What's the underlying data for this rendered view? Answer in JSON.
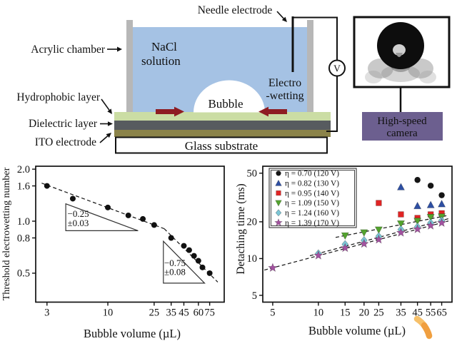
{
  "diagram": {
    "labels": {
      "acrylic_chamber": "Acrylic chamber",
      "needle_electrode": "Needle electrode",
      "nacl_1": "NaCl",
      "nacl_2": "solution",
      "bubble": "Bubble",
      "electro_1": "Electro",
      "electro_2": "-wetting",
      "hydrophobic_layer": "Hydrophobic layer",
      "dielectric_layer": "Dielectric layer",
      "ito_electrode": "ITO electrode",
      "glass_substrate": "Glass substrate",
      "voltmeter": "V",
      "camera_1": "High-speed",
      "camera_2": "camera"
    },
    "colors": {
      "solution": "#a5c2e4",
      "chamber_wall": "#b7b7b7",
      "hydrophobic": "#cbdda4",
      "dielectric": "#575b5f",
      "ito": "#8b8349",
      "electrowetting_text": "#93203e",
      "force_arrow": "#8e1c22",
      "camera_box": "#6c5f8f",
      "swoosh_light": "#f6c06a",
      "swoosh_dark": "#ef9d3e"
    }
  },
  "chart_data": [
    {
      "id": "threshold",
      "type": "scatter",
      "title": "",
      "xlabel": "Bubble volume (µL)",
      "ylabel": "Threshold electrowetting number",
      "xscale": "log",
      "yscale": "log",
      "xlim": [
        2.4,
        100
      ],
      "ylim": [
        0.34,
        2.08
      ],
      "grid": false,
      "xticks": [
        {
          "v": 3,
          "label": "3"
        },
        {
          "v": 10,
          "label": "10"
        },
        {
          "v": 25,
          "label": "25"
        },
        {
          "v": 35,
          "label": "35"
        },
        {
          "v": 45,
          "label": "45"
        },
        {
          "v": 60,
          "label": "60"
        },
        {
          "v": 75,
          "label": "75"
        }
      ],
      "yticks": [
        {
          "v": 2.0,
          "label": "2.0"
        },
        {
          "v": 1.6,
          "label": "1.6"
        },
        {
          "v": 1.0,
          "label": "1.0"
        },
        {
          "v": 0.8,
          "label": "0.8"
        },
        {
          "v": 0.5,
          "label": "0.5"
        }
      ],
      "series": [
        {
          "name": "threshold-electrowetting-number",
          "marker": "circle",
          "color": "#111111",
          "points": [
            [
              3,
              1.6
            ],
            [
              5,
              1.35
            ],
            [
              10,
              1.2
            ],
            [
              15,
              1.08
            ],
            [
              20,
              1.03
            ],
            [
              25,
              0.95
            ],
            [
              35,
              0.8
            ],
            [
              45,
              0.72
            ],
            [
              50,
              0.68
            ],
            [
              55,
              0.63
            ],
            [
              60,
              0.59
            ],
            [
              65,
              0.54
            ],
            [
              75,
              0.5
            ]
          ]
        }
      ],
      "fit_lines": [
        [
          [
            2.7,
            1.66
          ],
          [
            30.5,
            0.905
          ]
        ],
        [
          [
            30.5,
            0.905
          ],
          [
            88,
            0.444
          ]
        ]
      ],
      "slope_triangles": [
        {
          "vertices": [
            [
              4.35,
              1.26
            ],
            [
              18.2,
              0.881
            ],
            [
              4.35,
              0.881
            ]
          ],
          "labels": [
            {
              "text": "−0.25",
              "x": 4.5,
              "y": 1.06
            },
            {
              "text": "±0.03",
              "x": 4.5,
              "y": 0.935
            }
          ]
        },
        {
          "vertices": [
            [
              30,
              0.765
            ],
            [
              67.8,
              0.438
            ],
            [
              30,
              0.438
            ]
          ],
          "labels": [
            {
              "text": "−0.75",
              "x": 30.5,
              "y": 0.55
            },
            {
              "text": "±0.08",
              "x": 30.5,
              "y": 0.487
            }
          ]
        }
      ]
    },
    {
      "id": "detach",
      "type": "scatter",
      "title": "",
      "xlabel": "Bubble volume (µL)",
      "ylabel": "Detaching time (ms)",
      "xscale": "log",
      "yscale": "log",
      "xlim": [
        4.3,
        76
      ],
      "ylim": [
        4.4,
        57
      ],
      "grid": false,
      "legend_position": "upper-left",
      "xticks": [
        {
          "v": 5,
          "label": "5"
        },
        {
          "v": 10,
          "label": "10"
        },
        {
          "v": 15,
          "label": "15"
        },
        {
          "v": 20,
          "label": "20"
        },
        {
          "v": 25,
          "label": "25"
        },
        {
          "v": 35,
          "label": "35"
        },
        {
          "v": 45,
          "label": "45"
        },
        {
          "v": 55,
          "label": "55"
        },
        {
          "v": 65,
          "label": "65"
        }
      ],
      "yticks": [
        {
          "v": 50,
          "label": "50"
        },
        {
          "v": 20,
          "label": "20"
        },
        {
          "v": 10,
          "label": "10"
        },
        {
          "v": 5,
          "label": "5"
        }
      ],
      "series": [
        {
          "name": "eta-0.70",
          "label": "η = 0.70 (120 V)",
          "marker": "circle",
          "color": "#151515",
          "points": [
            [
              45,
              44
            ],
            [
              55,
              39.5
            ],
            [
              65,
              33
            ]
          ]
        },
        {
          "name": "eta-0.82",
          "label": "η = 0.82 (130 V)",
          "marker": "triangle-up",
          "color": "#2e4fa3",
          "points": [
            [
              35,
              38.5
            ],
            [
              45,
              27
            ],
            [
              55,
              27.5
            ],
            [
              65,
              28
            ]
          ]
        },
        {
          "name": "eta-0.95",
          "label": "η = 0.95 (140 V)",
          "marker": "square",
          "color": "#e02424",
          "points": [
            [
              25,
              28.5
            ],
            [
              35,
              23
            ],
            [
              45,
              21.5
            ],
            [
              55,
              23
            ],
            [
              65,
              23.5
            ]
          ]
        },
        {
          "name": "eta-1.09",
          "label": "η = 1.09 (150 V)",
          "marker": "triangle-down",
          "color": "#53a32e",
          "points": [
            [
              15,
              15.4
            ],
            [
              20,
              16.3
            ],
            [
              25,
              17.2
            ],
            [
              35,
              19.3
            ],
            [
              45,
              20.3
            ],
            [
              55,
              21.8
            ],
            [
              65,
              22
            ]
          ]
        },
        {
          "name": "eta-1.24",
          "label": "η = 1.24 (160 V)",
          "marker": "diamond",
          "color": "#7cc6d6",
          "points": [
            [
              10,
              11
            ],
            [
              15,
              13.1
            ],
            [
              20,
              14.1
            ],
            [
              25,
              15.2
            ],
            [
              35,
              17.3
            ],
            [
              45,
              18.2
            ],
            [
              55,
              19.6
            ],
            [
              65,
              20.5
            ]
          ]
        },
        {
          "name": "eta-1.39",
          "label": "η = 1.39 (170 V)",
          "marker": "star",
          "color": "#a352a0",
          "points": [
            [
              5,
              8.4
            ],
            [
              10,
              10.6
            ],
            [
              15,
              12.2
            ],
            [
              20,
              13.2
            ],
            [
              25,
              14.3
            ],
            [
              35,
              16.3
            ],
            [
              45,
              17.4
            ],
            [
              55,
              18.6
            ],
            [
              65,
              19.6
            ]
          ]
        }
      ],
      "fit_lines": [
        [
          [
            13,
            14.9
          ],
          [
            72,
            22.6
          ]
        ],
        [
          [
            8.8,
            10.55
          ],
          [
            72,
            21.2
          ]
        ],
        [
          [
            4.4,
            8.05
          ],
          [
            72,
            20.3
          ]
        ]
      ]
    }
  ]
}
